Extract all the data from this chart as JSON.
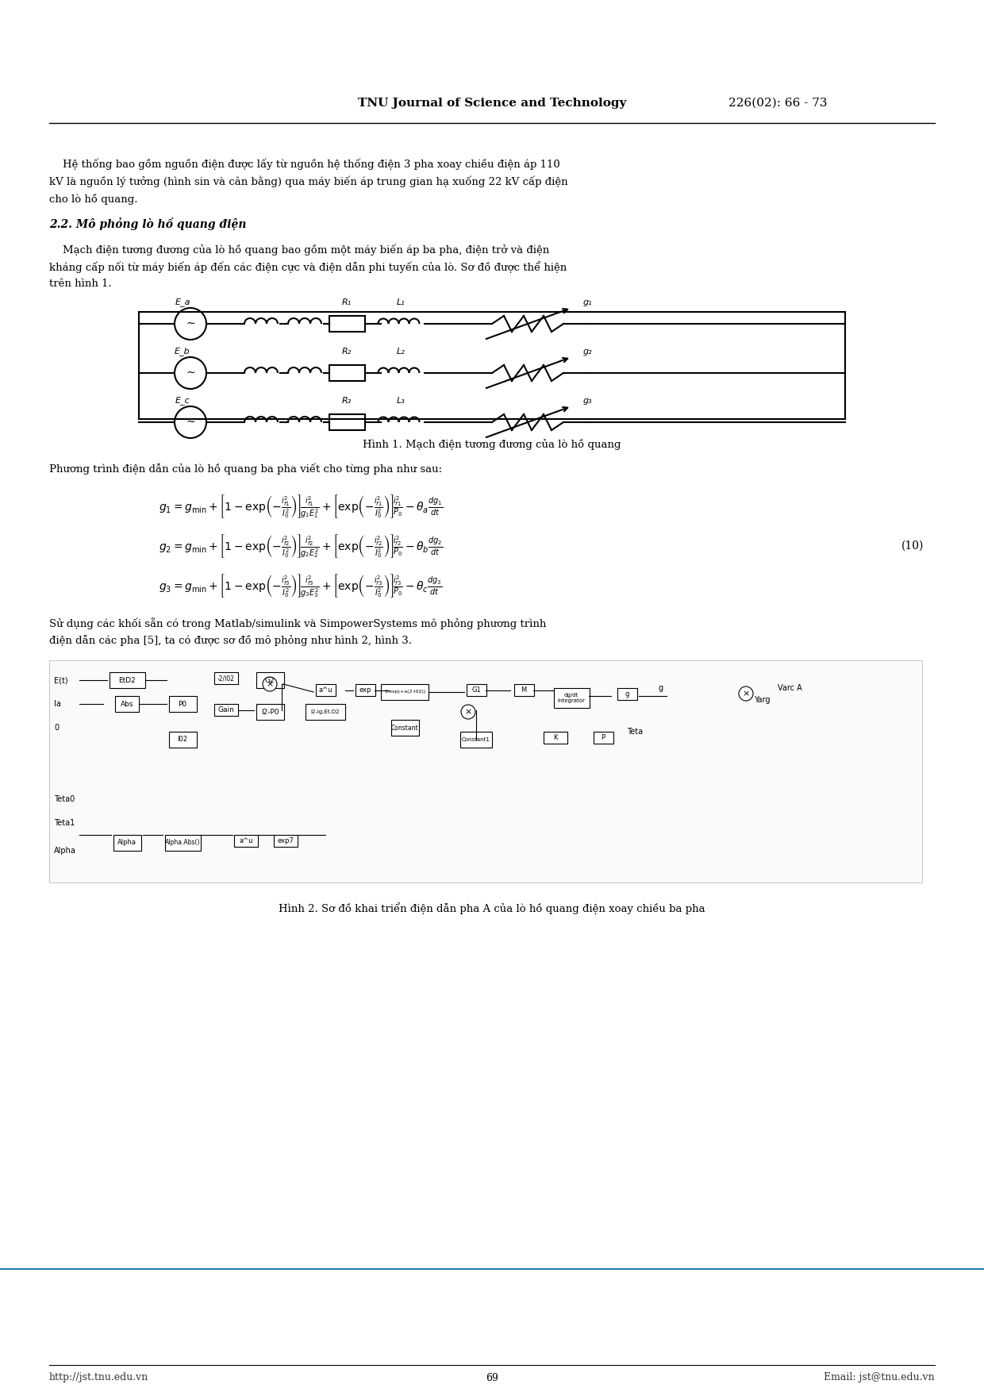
{
  "page_width": 12.4,
  "page_height": 17.54,
  "dpi": 100,
  "bg_color": "#ffffff",
  "header_title": "TNU Journal of Science and Technology",
  "header_right": "226(02): 66 - 73",
  "footer_left": "http://jst.tnu.edu.vn",
  "footer_center": "69",
  "footer_right": "Email: jst@tnu.edu.vn",
  "section_2_2_title": "2.2. Mô phỏng lò hồ quang điện",
  "para1": "    Hệ thống bao gồm nguồn điện được lấy từ nguồn hệ thống điện 3 pha xoay chiều điện áp 110\nkV là nguồn lý tưởng (hình sin và cân bằng) qua máy biến áp trung gian hạ xuống 22 kV cấp điện\ncho lò hồ quang.",
  "para2": "    Mạch điện tương đương của lò hồ quang bao gồm một máy biến áp ba pha, điện trở và điện\nkháng cấp nối từ máy biến áp đến các điện cực và điện dẫn phi tuyến của lò. Sơ đồ được thể hiện\ntrên hình 1.",
  "fig1_caption": "Hình 1. Mạch điện tương đương của lò hồ quang",
  "eq_intro": "Phương trình điện dẫn của lò hồ quang ba pha viết cho từng pha như sau:",
  "eq_number": "(10)",
  "fig2_caption": "Hình 2. Sơ đồ khai triển điện dẫn pha A của lò hồ quang điện xoay chiều ba pha",
  "para3": "Sử dụng các khối sẵn có trong Matlab/simulink và SimpowerSystems mô phỏng phương trình\nđiện dẫn các pha [5], ta có được sơ đồ mô phỏng như hình 2, hình 3."
}
